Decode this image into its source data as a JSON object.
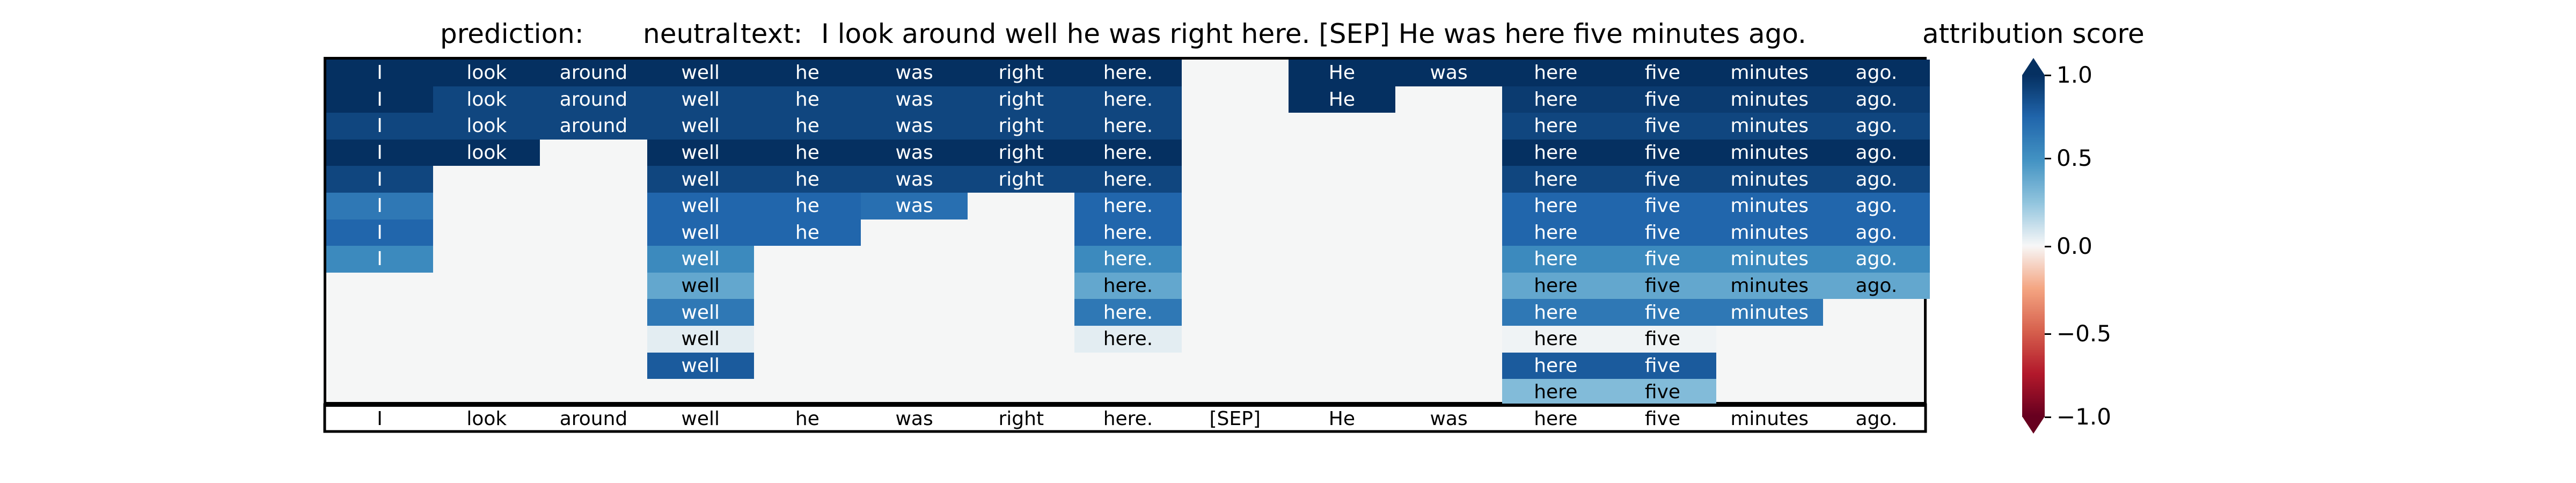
{
  "header": {
    "prediction_label": "prediction:",
    "prediction_value": "neutral",
    "text_label": "text:",
    "text_value": "I look around well he was right here. [SEP] He was here five minutes ago."
  },
  "colorbar": {
    "title": "attribution score",
    "ticks": [
      "1.0",
      "0.5",
      "0.0",
      "−0.5",
      "−1.0"
    ],
    "range": [
      -1.0,
      1.0
    ],
    "colormap": "RdBu",
    "extend": "both"
  },
  "chart_data": {
    "type": "heatmap",
    "tokens": [
      "I",
      "look",
      "around",
      "well",
      "he",
      "was",
      "right",
      "here.",
      "[SEP]",
      "He",
      "was",
      "here",
      "five",
      "minutes",
      "ago."
    ],
    "rows": [
      [
        1.0,
        1.0,
        1.0,
        1.0,
        1.0,
        1.0,
        1.0,
        1.0,
        null,
        1.0,
        1.0,
        1.0,
        1.0,
        1.0,
        1.0
      ],
      [
        1.0,
        0.9,
        0.9,
        0.9,
        0.9,
        0.9,
        0.9,
        0.9,
        null,
        1.0,
        null,
        0.95,
        0.95,
        0.95,
        0.95
      ],
      [
        0.9,
        0.9,
        0.9,
        0.9,
        0.9,
        0.9,
        0.9,
        0.9,
        null,
        null,
        null,
        0.9,
        0.9,
        0.9,
        0.9
      ],
      [
        1.0,
        1.0,
        null,
        1.0,
        1.0,
        1.0,
        1.0,
        1.0,
        null,
        null,
        null,
        1.0,
        1.0,
        1.0,
        1.0
      ],
      [
        0.9,
        null,
        null,
        0.9,
        0.9,
        0.9,
        0.9,
        0.9,
        null,
        null,
        null,
        0.9,
        0.9,
        0.9,
        0.9
      ],
      [
        0.65,
        null,
        null,
        0.75,
        0.75,
        0.7,
        null,
        0.75,
        null,
        null,
        null,
        0.75,
        0.75,
        0.75,
        0.75
      ],
      [
        0.75,
        null,
        null,
        0.75,
        0.75,
        null,
        null,
        0.75,
        null,
        null,
        null,
        0.75,
        0.75,
        0.75,
        0.75
      ],
      [
        0.55,
        null,
        null,
        0.55,
        null,
        null,
        null,
        0.55,
        null,
        null,
        null,
        0.55,
        0.55,
        0.55,
        0.55
      ],
      [
        null,
        null,
        null,
        0.4,
        null,
        null,
        null,
        0.4,
        null,
        null,
        null,
        0.4,
        0.4,
        0.4,
        0.4
      ],
      [
        null,
        null,
        null,
        0.65,
        null,
        null,
        null,
        0.65,
        null,
        null,
        null,
        0.65,
        0.65,
        0.65,
        null
      ],
      [
        null,
        null,
        null,
        0.05,
        null,
        null,
        null,
        0.05,
        null,
        null,
        null,
        0.02,
        0.02,
        null,
        null
      ],
      [
        null,
        null,
        null,
        0.8,
        null,
        null,
        null,
        null,
        null,
        null,
        null,
        0.8,
        0.8,
        null,
        null
      ],
      [
        null,
        null,
        null,
        null,
        null,
        null,
        null,
        null,
        null,
        null,
        null,
        0.3,
        0.3,
        null,
        null
      ]
    ],
    "value_range": [
      -1.0,
      1.0
    ]
  }
}
